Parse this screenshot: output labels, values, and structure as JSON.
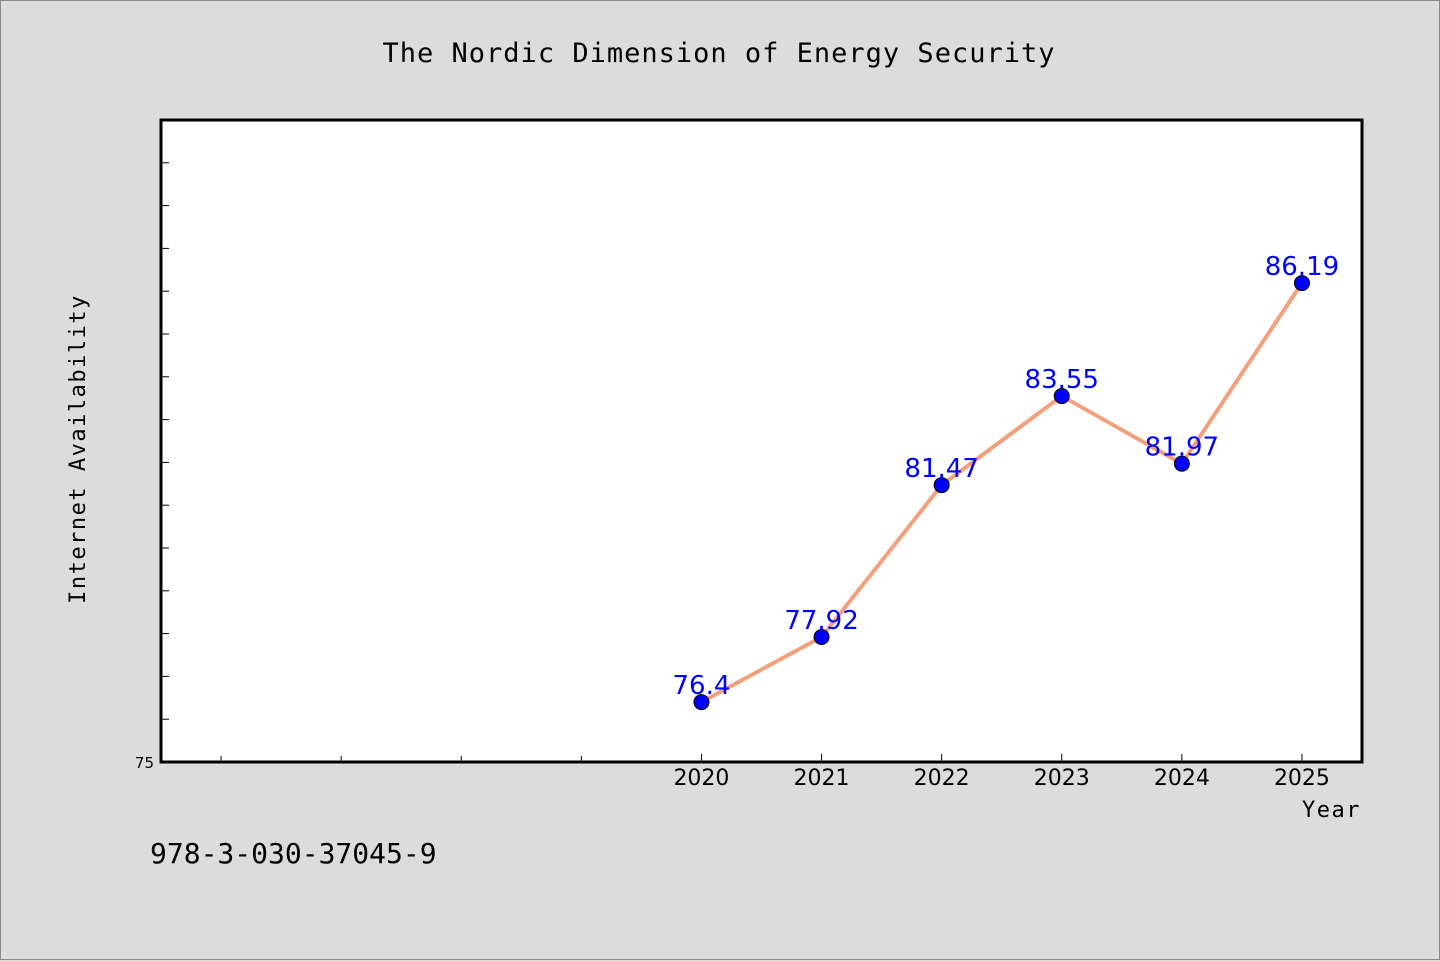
{
  "colors": {
    "background": "#dcdcdc",
    "plot_background": "#ffffff",
    "line": "#f4a07c",
    "marker": "#0000ff",
    "data_label": "#0000ff",
    "text": "#000000"
  },
  "footer": {
    "isbn": "978-3-030-37045-9"
  },
  "chart_data": {
    "type": "line",
    "title": "The Nordic Dimension of Energy Security",
    "xlabel": "Year",
    "ylabel": "Internet Availability",
    "x": [
      "2020",
      "2021",
      "2022",
      "2023",
      "2024",
      "2025"
    ],
    "series": [
      {
        "values": [
          76.4,
          77.92,
          81.47,
          83.55,
          81.97,
          86.19
        ],
        "labels": [
          "76.4",
          "77.92",
          "81.47",
          "83.55",
          "81.97",
          "86.19"
        ]
      }
    ],
    "xlim": [
      2015.5,
      2025.5
    ],
    "ylim": [
      75,
      90
    ],
    "y_tick_labels": [
      "75"
    ],
    "y_minor_tick_step": 1,
    "x_minor_ticks": [
      2016,
      2017,
      2018,
      2019
    ],
    "grid": false,
    "legend": "none",
    "marker": "circle"
  }
}
